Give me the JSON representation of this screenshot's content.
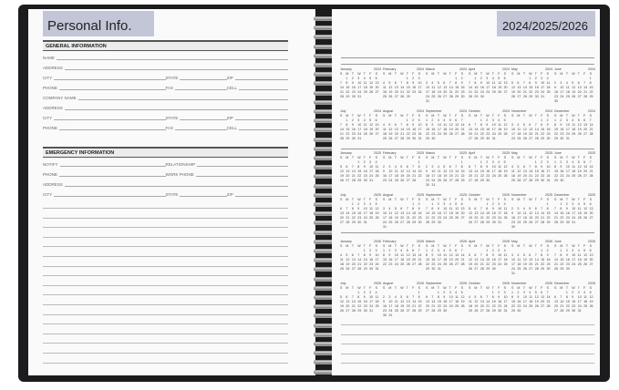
{
  "left_page": {
    "title": "Personal Info.",
    "general": {
      "heading": "GENERAL INFORMATION",
      "rows": [
        [
          "NAME"
        ],
        [
          "ADDRESS"
        ],
        [
          "CITY",
          "STATE",
          "ZIP"
        ],
        [
          "PHONE",
          "FAX",
          "CELL"
        ],
        [
          "COMPANY NAME"
        ],
        [
          "ADDRESS"
        ],
        [
          "CITY",
          "STATE",
          "ZIP"
        ],
        [
          "PHONE",
          "FAX",
          "CELL"
        ]
      ]
    },
    "emergency": {
      "heading": "EMERGENCY INFORMATION",
      "rows": [
        [
          "NOTIFY",
          "RELATIONSHIP"
        ],
        [
          "PHONE",
          "WORK PHONE"
        ],
        [
          "ADDRESS"
        ],
        [
          "CITY",
          "STATE",
          "ZIP"
        ]
      ]
    }
  },
  "right_page": {
    "title": "2024/2025/2026",
    "years": [
      2024,
      2025,
      2026
    ],
    "months": [
      "January",
      "February",
      "March",
      "April",
      "May",
      "June",
      "July",
      "August",
      "September",
      "October",
      "November",
      "December"
    ],
    "weekdays": [
      "S",
      "M",
      "T",
      "W",
      "T",
      "F",
      "S"
    ]
  },
  "colors": {
    "cover": "#1c1c1e",
    "title_box": "#c3c6d6"
  }
}
